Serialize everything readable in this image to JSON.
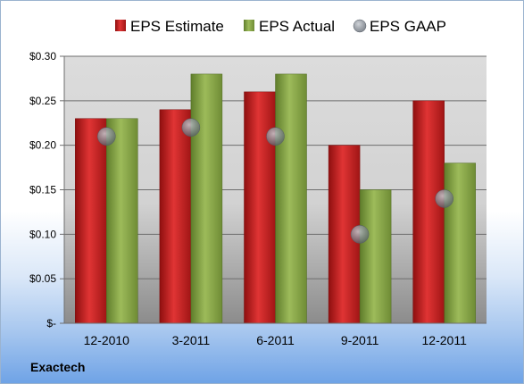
{
  "company": "Exactech",
  "colors": {
    "estimate": "#cc1f1f",
    "actual": "#8fae4a",
    "gaap": "#9aa3ad"
  },
  "chart_data": {
    "type": "bar",
    "categories": [
      "12-2010",
      "3-2011",
      "6-2011",
      "9-2011",
      "12-2011"
    ],
    "series": [
      {
        "name": "EPS Estimate",
        "kind": "bar",
        "values": [
          0.23,
          0.24,
          0.26,
          0.2,
          0.25
        ]
      },
      {
        "name": "EPS Actual",
        "kind": "bar",
        "values": [
          0.23,
          0.28,
          0.28,
          0.15,
          0.18
        ]
      },
      {
        "name": "EPS GAAP",
        "kind": "marker",
        "values": [
          0.21,
          0.22,
          0.21,
          0.1,
          0.14
        ]
      }
    ],
    "ylim": [
      0,
      0.3
    ],
    "yticks": [
      0,
      0.05,
      0.1,
      0.15,
      0.2,
      0.25,
      0.3
    ],
    "ytick_labels": [
      "$-",
      "$0.05",
      "$0.10",
      "$0.15",
      "$0.20",
      "$0.25",
      "$0.30"
    ],
    "grid": true,
    "legend": "top"
  }
}
